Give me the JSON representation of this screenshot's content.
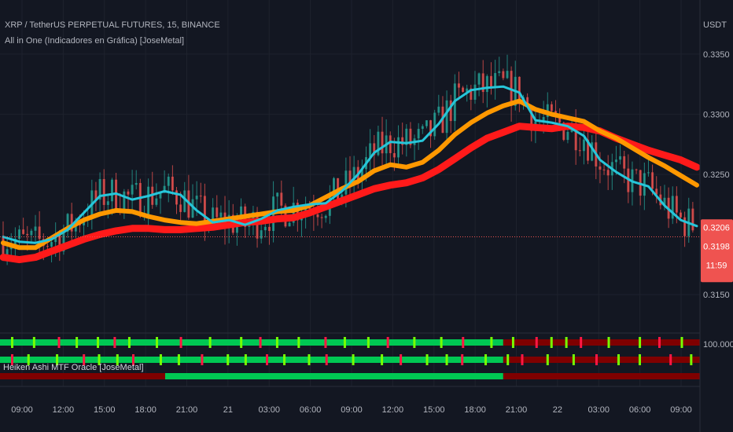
{
  "header": {
    "symbol": "XRP / TetherUS PERPETUAL FUTURES, 15, BINANCE",
    "indicator": "All in One (Indicadores en Gráfica) [JoseMetal]",
    "oscillator": "Heiken Ashi MTF Oracle [JoseMetal]",
    "unit": "USDT"
  },
  "colors": {
    "background": "#131722",
    "grid": "#1e222d",
    "bull_candle": "#26a69a",
    "bear_candle": "#ef5350",
    "fast_ma": "#26c6da",
    "mid_ma": "#ff9800",
    "slow_ma": "#ff1a1a",
    "price_tag": "#ef5350",
    "ha_bull": "#00c853",
    "ha_bear": "#d50000",
    "ha_bull_dark": "#1b5e20",
    "ha_bear_dark": "#7f0000"
  },
  "chart_data": {
    "type": "candlestick",
    "x_ticks": [
      "09:00",
      "12:00",
      "15:00",
      "18:00",
      "21:00",
      "21",
      "03:00",
      "06:00",
      "09:00",
      "12:00",
      "15:00",
      "18:00",
      "21:00",
      "22",
      "03:00",
      "06:00",
      "09:00"
    ],
    "y_ticks": [
      "0.3350",
      "0.3300",
      "0.3250",
      "0.3150"
    ],
    "ylim": [
      0.3118,
      0.3395
    ],
    "last_price": "0.3198",
    "price_tag_top": "0.3206",
    "countdown": "11:59",
    "oscillator_max_label": "100.0000",
    "series": [
      {
        "name": "fast",
        "key": "fast_ma",
        "values": [
          [
            0,
            0.3198
          ],
          [
            2,
            0.3194
          ],
          [
            4,
            0.3193
          ],
          [
            6,
            0.3196
          ],
          [
            8,
            0.3204
          ],
          [
            10,
            0.3218
          ],
          [
            12,
            0.3232
          ],
          [
            14,
            0.3234
          ],
          [
            16,
            0.3229
          ],
          [
            18,
            0.3232
          ],
          [
            20,
            0.3236
          ],
          [
            22,
            0.3233
          ],
          [
            24,
            0.322
          ],
          [
            26,
            0.321
          ],
          [
            28,
            0.3212
          ],
          [
            30,
            0.3208
          ],
          [
            32,
            0.3213
          ],
          [
            34,
            0.322
          ],
          [
            36,
            0.3223
          ],
          [
            38,
            0.3225
          ],
          [
            40,
            0.3226
          ],
          [
            42,
            0.3236
          ],
          [
            44,
            0.325
          ],
          [
            46,
            0.3268
          ],
          [
            48,
            0.3277
          ],
          [
            50,
            0.3276
          ],
          [
            52,
            0.3278
          ],
          [
            54,
            0.3292
          ],
          [
            56,
            0.3311
          ],
          [
            58,
            0.332
          ],
          [
            60,
            0.3322
          ],
          [
            62,
            0.3323
          ],
          [
            64,
            0.3318
          ],
          [
            66,
            0.3295
          ],
          [
            68,
            0.3293
          ],
          [
            70,
            0.329
          ],
          [
            72,
            0.3282
          ],
          [
            74,
            0.3262
          ],
          [
            76,
            0.3252
          ],
          [
            78,
            0.3244
          ],
          [
            80,
            0.324
          ],
          [
            82,
            0.3224
          ],
          [
            84,
            0.3212
          ],
          [
            86,
            0.3207
          ]
        ]
      },
      {
        "name": "mid",
        "key": "mid_ma",
        "values": [
          [
            0,
            0.3193
          ],
          [
            2,
            0.3189
          ],
          [
            4,
            0.3189
          ],
          [
            6,
            0.3197
          ],
          [
            8,
            0.3205
          ],
          [
            10,
            0.3212
          ],
          [
            12,
            0.3217
          ],
          [
            14,
            0.322
          ],
          [
            16,
            0.3219
          ],
          [
            18,
            0.3215
          ],
          [
            20,
            0.3212
          ],
          [
            22,
            0.321
          ],
          [
            24,
            0.3209
          ],
          [
            26,
            0.3211
          ],
          [
            28,
            0.3213
          ],
          [
            30,
            0.3215
          ],
          [
            32,
            0.3217
          ],
          [
            34,
            0.3219
          ],
          [
            36,
            0.322
          ],
          [
            38,
            0.3224
          ],
          [
            40,
            0.3231
          ],
          [
            42,
            0.3238
          ],
          [
            44,
            0.3244
          ],
          [
            46,
            0.3253
          ],
          [
            48,
            0.3258
          ],
          [
            50,
            0.3256
          ],
          [
            52,
            0.326
          ],
          [
            54,
            0.327
          ],
          [
            56,
            0.3283
          ],
          [
            58,
            0.3293
          ],
          [
            60,
            0.3301
          ],
          [
            62,
            0.3307
          ],
          [
            64,
            0.3311
          ],
          [
            66,
            0.3304
          ],
          [
            68,
            0.33
          ],
          [
            70,
            0.3297
          ],
          [
            72,
            0.3294
          ],
          [
            74,
            0.3286
          ],
          [
            76,
            0.328
          ],
          [
            78,
            0.3272
          ],
          [
            80,
            0.3264
          ],
          [
            82,
            0.3257
          ],
          [
            84,
            0.3249
          ],
          [
            86,
            0.3241
          ]
        ]
      },
      {
        "name": "slow",
        "key": "slow_ma",
        "values": [
          [
            0,
            0.3181
          ],
          [
            2,
            0.3179
          ],
          [
            4,
            0.3181
          ],
          [
            6,
            0.3186
          ],
          [
            8,
            0.3191
          ],
          [
            10,
            0.3196
          ],
          [
            12,
            0.32
          ],
          [
            14,
            0.3203
          ],
          [
            16,
            0.3205
          ],
          [
            18,
            0.3205
          ],
          [
            20,
            0.3204
          ],
          [
            22,
            0.3204
          ],
          [
            24,
            0.3205
          ],
          [
            26,
            0.3206
          ],
          [
            28,
            0.3208
          ],
          [
            30,
            0.321
          ],
          [
            32,
            0.3211
          ],
          [
            34,
            0.3213
          ],
          [
            36,
            0.3214
          ],
          [
            38,
            0.3218
          ],
          [
            40,
            0.3223
          ],
          [
            42,
            0.3228
          ],
          [
            44,
            0.3233
          ],
          [
            46,
            0.3238
          ],
          [
            48,
            0.3241
          ],
          [
            50,
            0.3243
          ],
          [
            52,
            0.3247
          ],
          [
            54,
            0.3254
          ],
          [
            56,
            0.3263
          ],
          [
            58,
            0.3272
          ],
          [
            60,
            0.328
          ],
          [
            62,
            0.3285
          ],
          [
            64,
            0.329
          ],
          [
            66,
            0.3289
          ],
          [
            68,
            0.3288
          ],
          [
            70,
            0.329
          ],
          [
            72,
            0.3289
          ],
          [
            74,
            0.3286
          ],
          [
            76,
            0.328
          ],
          [
            78,
            0.3275
          ],
          [
            80,
            0.327
          ],
          [
            82,
            0.3266
          ],
          [
            84,
            0.3262
          ],
          [
            86,
            0.3256
          ]
        ]
      }
    ]
  }
}
